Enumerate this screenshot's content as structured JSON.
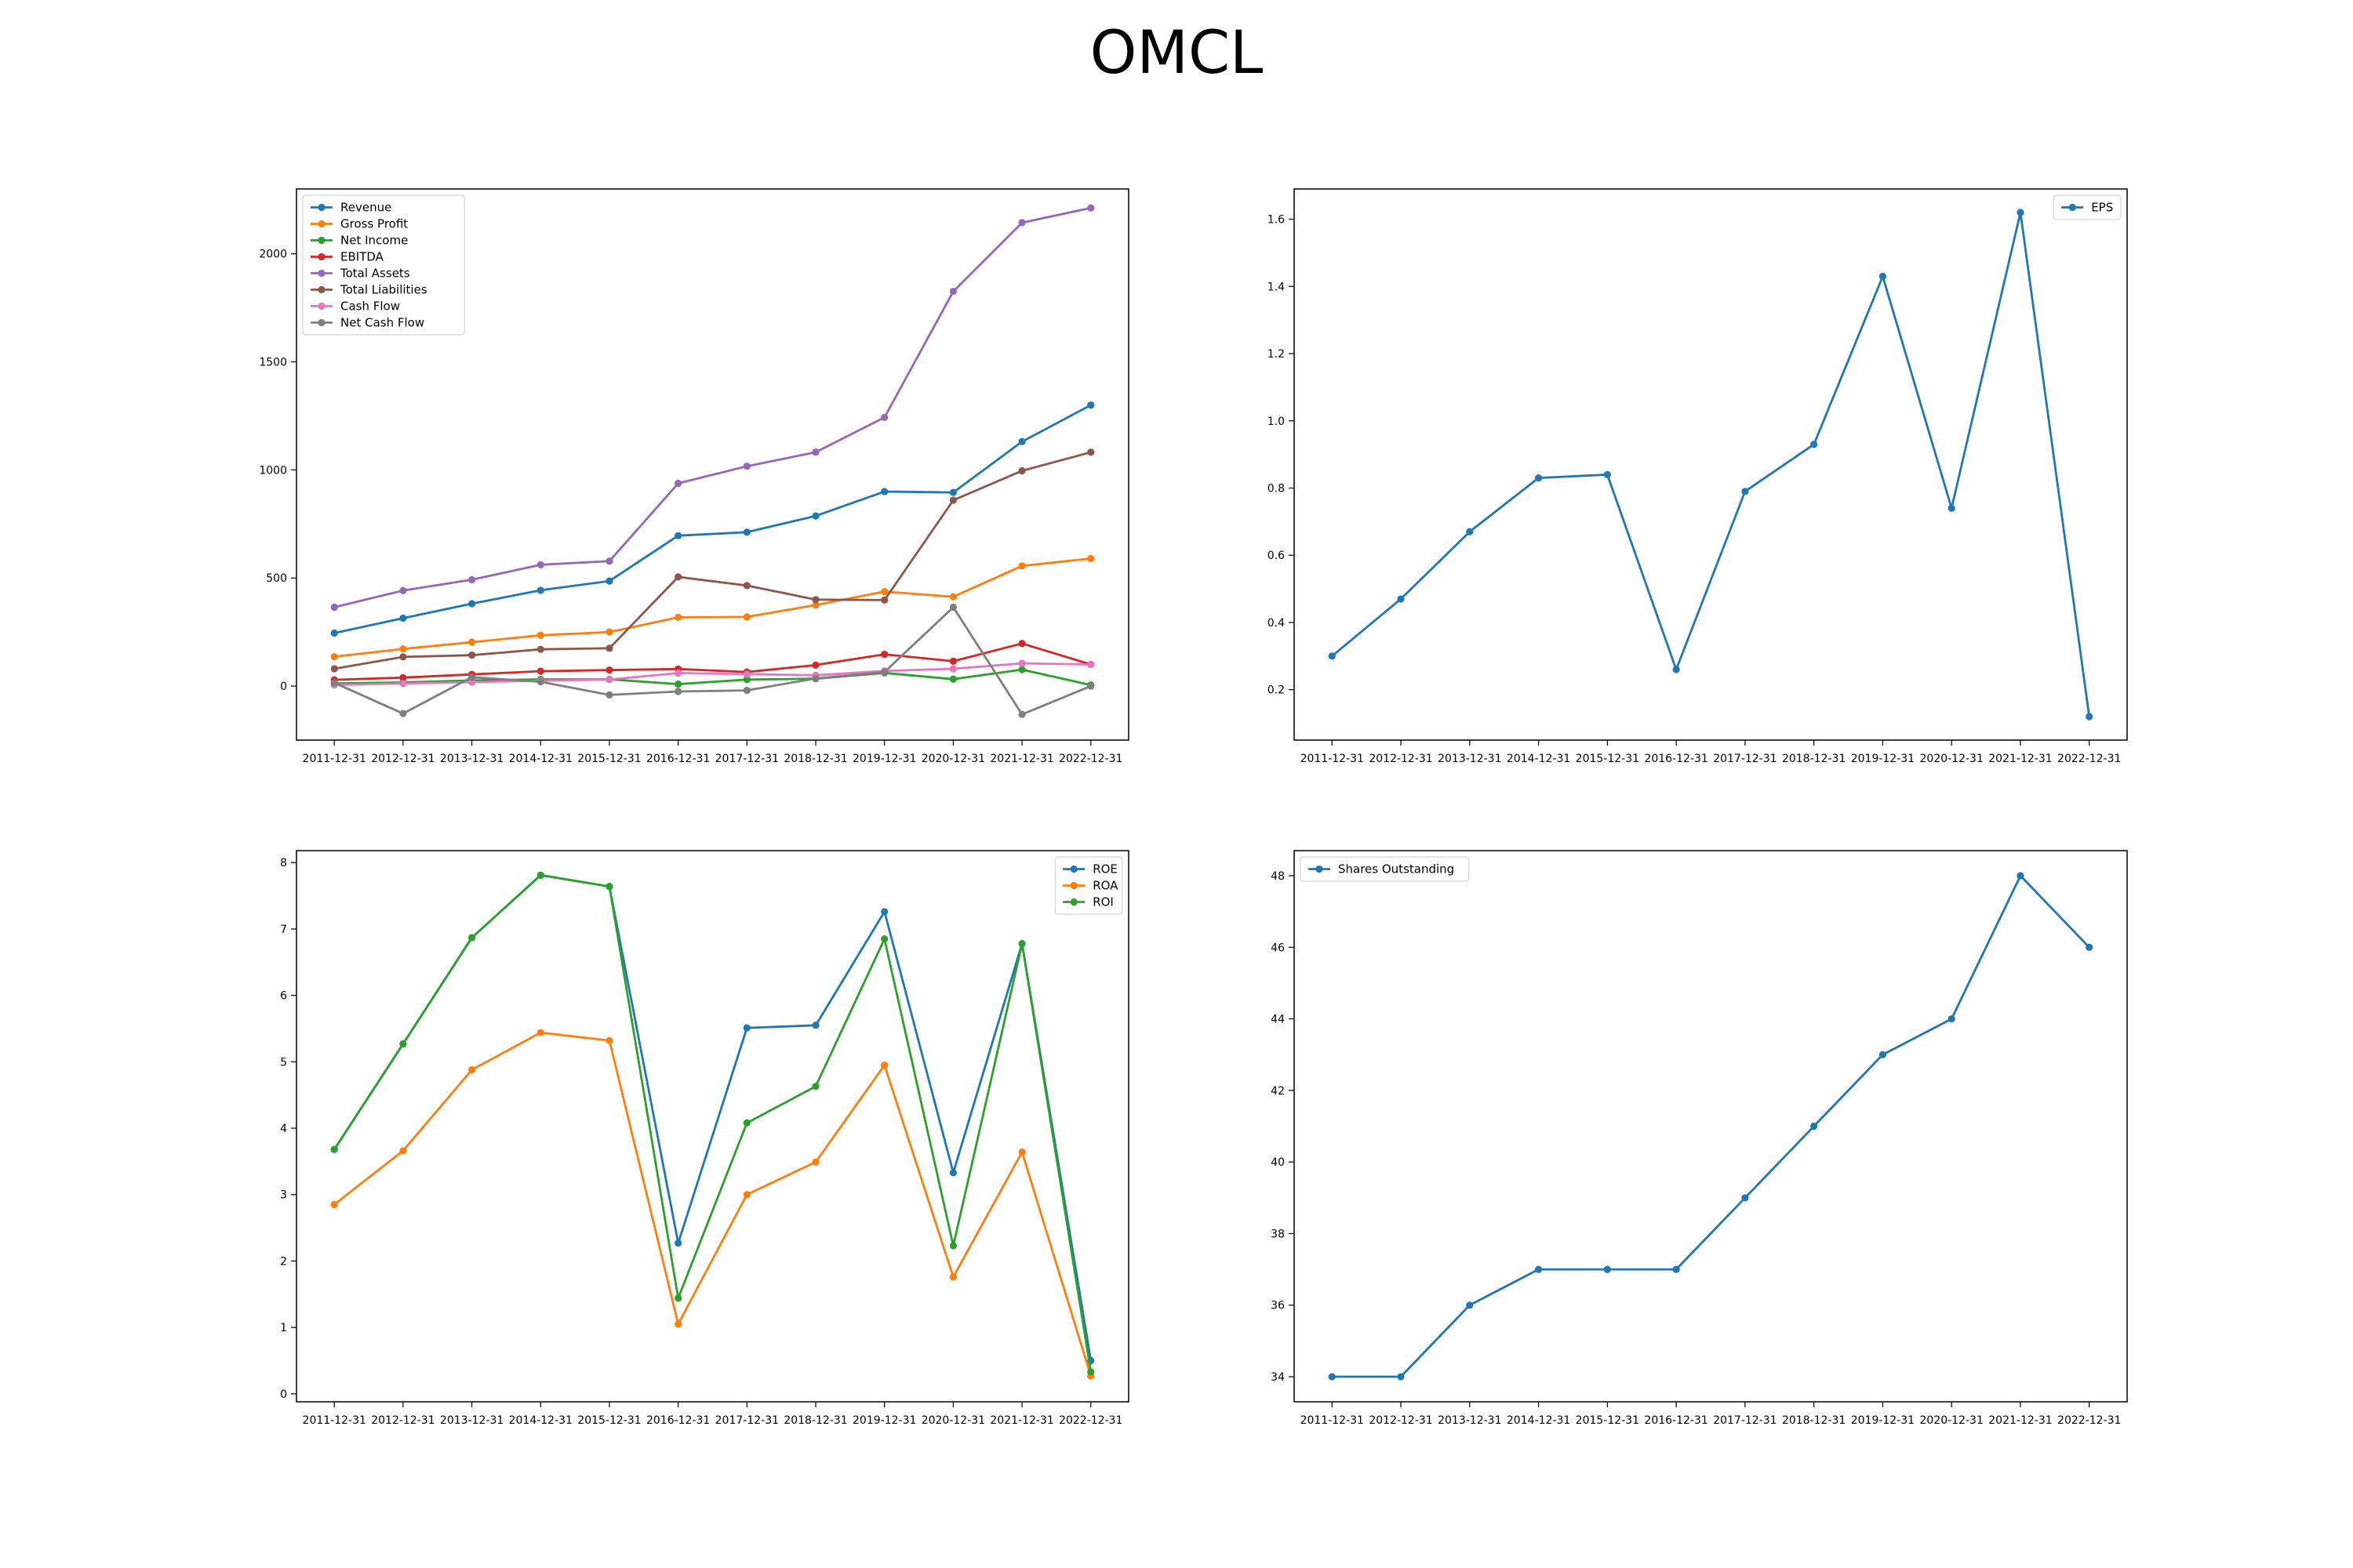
{
  "figure": {
    "title": "OMCL"
  },
  "chart_data": [
    {
      "type": "line",
      "x": [
        "2011-12-31",
        "2012-12-31",
        "2013-12-31",
        "2014-12-31",
        "2015-12-31",
        "2016-12-31",
        "2017-12-31",
        "2018-12-31",
        "2019-12-31",
        "2020-12-31",
        "2021-12-31",
        "2022-12-31"
      ],
      "ylim": [
        -250,
        2300
      ],
      "yticks": [
        0,
        500,
        1000,
        1500,
        2000
      ],
      "legend": "upper-left",
      "series": [
        {
          "name": "Revenue",
          "color": "#1f77b4",
          "values": [
            245,
            314,
            381,
            443,
            486,
            696,
            712,
            787,
            900,
            896,
            1131,
            1300
          ]
        },
        {
          "name": "Gross Profit",
          "color": "#ff7f0e",
          "values": [
            136,
            172,
            203,
            235,
            250,
            318,
            320,
            375,
            437,
            413,
            556,
            590
          ]
        },
        {
          "name": "Net Income",
          "color": "#2ca02c",
          "values": [
            12,
            17,
            26,
            31,
            31,
            9,
            30,
            34,
            61,
            32,
            76,
            5
          ]
        },
        {
          "name": "EBITDA",
          "color": "#d62728",
          "values": [
            29,
            39,
            54,
            69,
            74,
            79,
            65,
            97,
            147,
            115,
            197,
            100
          ]
        },
        {
          "name": "Total Assets",
          "color": "#9467bd",
          "values": [
            365,
            442,
            492,
            561,
            578,
            938,
            1017,
            1082,
            1243,
            1826,
            2144,
            2212
          ]
        },
        {
          "name": "Total Liabilities",
          "color": "#8c564b",
          "values": [
            80,
            135,
            143,
            170,
            175,
            505,
            465,
            400,
            398,
            860,
            996,
            1082
          ]
        },
        {
          "name": "Cash Flow",
          "color": "#e377c2",
          "values": [
            5,
            12,
            18,
            25,
            30,
            60,
            55,
            50,
            70,
            80,
            105,
            100
          ]
        },
        {
          "name": "Net Cash Flow",
          "color": "#7f7f7f",
          "values": [
            15,
            -127,
            41,
            20,
            -41,
            -25,
            -20,
            35,
            65,
            365,
            -131,
            0
          ]
        }
      ]
    },
    {
      "type": "line",
      "x": [
        "2011-12-31",
        "2012-12-31",
        "2013-12-31",
        "2014-12-31",
        "2015-12-31",
        "2016-12-31",
        "2017-12-31",
        "2018-12-31",
        "2019-12-31",
        "2020-12-31",
        "2021-12-31",
        "2022-12-31"
      ],
      "ylim": [
        0.05,
        1.69
      ],
      "yticks": [
        0.2,
        0.4,
        0.6,
        0.8,
        1.0,
        1.2,
        1.4,
        1.6
      ],
      "legend": "upper-right",
      "series": [
        {
          "name": "EPS",
          "color": "#1f77b4",
          "values": [
            0.3,
            0.47,
            0.67,
            0.83,
            0.84,
            0.26,
            0.79,
            0.93,
            1.43,
            0.74,
            1.62,
            0.12
          ]
        }
      ]
    },
    {
      "type": "line",
      "x": [
        "2011-12-31",
        "2012-12-31",
        "2013-12-31",
        "2014-12-31",
        "2015-12-31",
        "2016-12-31",
        "2017-12-31",
        "2018-12-31",
        "2019-12-31",
        "2020-12-31",
        "2021-12-31",
        "2022-12-31"
      ],
      "ylim": [
        -0.12,
        8.18
      ],
      "yticks": [
        0,
        1,
        2,
        3,
        4,
        5,
        6,
        7,
        8
      ],
      "legend": "upper-right",
      "series": [
        {
          "name": "ROE",
          "color": "#1f77b4",
          "values": [
            3.68,
            5.27,
            6.87,
            7.81,
            7.64,
            2.27,
            5.51,
            5.55,
            7.26,
            3.33,
            6.78,
            0.5
          ]
        },
        {
          "name": "ROA",
          "color": "#ff7f0e",
          "values": [
            2.85,
            3.66,
            4.88,
            5.44,
            5.32,
            1.05,
            3.0,
            3.49,
            4.95,
            1.76,
            3.64,
            0.27
          ]
        },
        {
          "name": "ROI",
          "color": "#2ca02c",
          "values": [
            3.68,
            5.27,
            6.87,
            7.81,
            7.64,
            1.44,
            4.08,
            4.63,
            6.85,
            2.23,
            6.78,
            0.33
          ]
        }
      ]
    },
    {
      "type": "line",
      "x": [
        "2011-12-31",
        "2012-12-31",
        "2013-12-31",
        "2014-12-31",
        "2015-12-31",
        "2016-12-31",
        "2017-12-31",
        "2018-12-31",
        "2019-12-31",
        "2020-12-31",
        "2021-12-31",
        "2022-12-31"
      ],
      "ylim": [
        33.3,
        48.7
      ],
      "yticks": [
        34,
        36,
        38,
        40,
        42,
        44,
        46,
        48
      ],
      "legend": "upper-left",
      "series": [
        {
          "name": "Shares Outstanding",
          "color": "#1f77b4",
          "values": [
            34,
            34,
            36,
            37,
            37,
            37,
            39,
            41,
            43,
            44,
            48,
            46
          ]
        }
      ]
    }
  ]
}
